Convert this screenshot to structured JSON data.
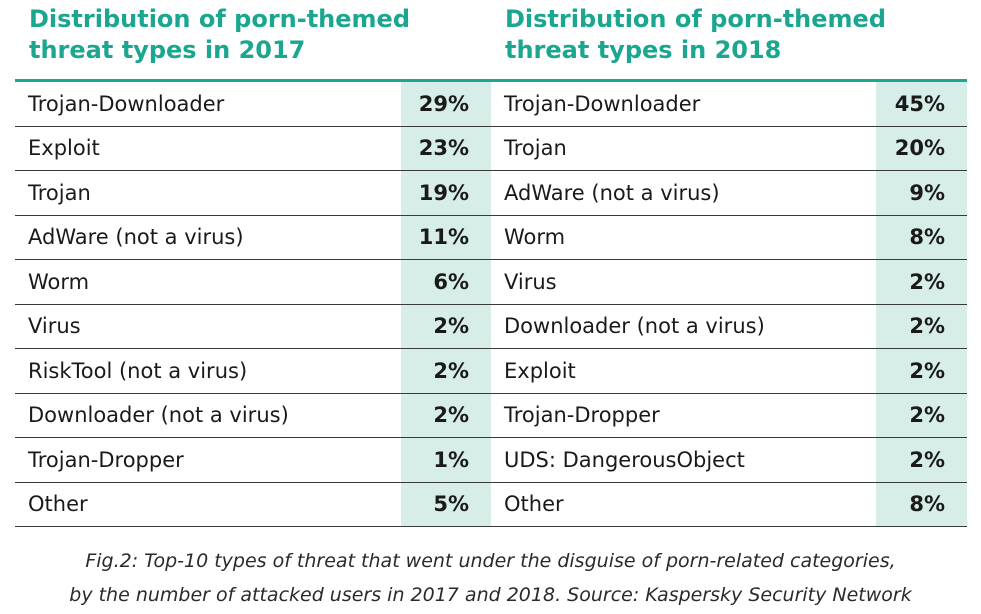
{
  "chart_data": [
    {
      "type": "table",
      "title": "Distribution of porn-themed\nthreat types in 2017",
      "categories": [
        "Trojan-Downloader",
        "Exploit",
        "Trojan",
        "AdWare (not a virus)",
        "Worm",
        "Virus",
        "RiskTool (not a virus)",
        "Downloader (not a virus)",
        "Trojan-Dropper",
        "Other"
      ],
      "values": [
        29,
        23,
        19,
        11,
        6,
        2,
        2,
        2,
        1,
        5
      ],
      "labels": [
        "29%",
        "23%",
        "19%",
        "11%",
        "6%",
        "2%",
        "2%",
        "2%",
        "1%",
        "5%"
      ]
    },
    {
      "type": "table",
      "title": "Distribution of porn-themed\nthreat types in 2018",
      "categories": [
        "Trojan-Downloader",
        "Trojan",
        "AdWare (not a virus)",
        "Worm",
        "Virus",
        "Downloader (not a virus)",
        "Exploit",
        "Trojan-Dropper",
        "UDS: DangerousObject",
        "Other"
      ],
      "values": [
        45,
        20,
        9,
        8,
        2,
        2,
        2,
        2,
        2,
        8
      ],
      "labels": [
        "45%",
        "20%",
        "9%",
        "8%",
        "2%",
        "2%",
        "2%",
        "2%",
        "2%",
        "8%"
      ]
    }
  ],
  "caption": "Fig.2: Top-10 types of threat that went under the disguise of porn-related categories,\nby the number of attacked users in 2017 and 2018. Source: Kaspersky Security Network",
  "colors": {
    "accent": "#1aa68f",
    "value_cell_bg": "#d6ede8",
    "row_rule": "#3a3a3a"
  }
}
